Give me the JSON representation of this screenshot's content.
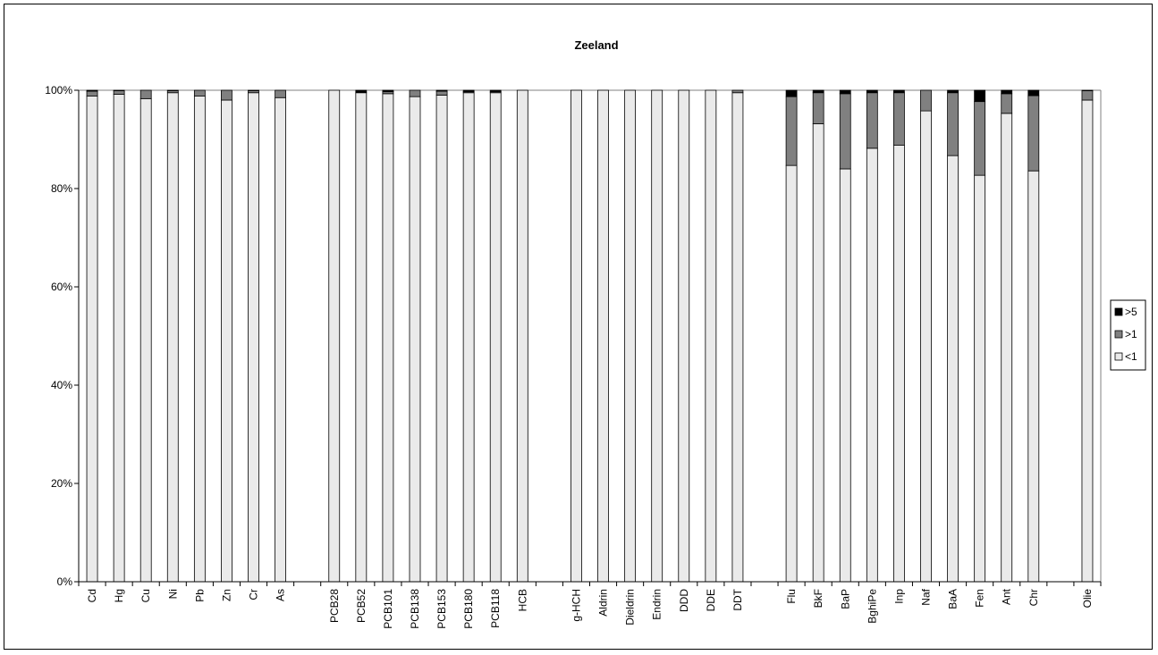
{
  "chart_data": {
    "type": "bar",
    "stacked": true,
    "percent_stacked": true,
    "title": "Zeeland",
    "xlabel": "",
    "ylabel": "",
    "ylim": [
      0,
      100
    ],
    "yticks": [
      "0%",
      "20%",
      "40%",
      "60%",
      "80%",
      "100%"
    ],
    "grid": false,
    "legend_position": "right",
    "categories": [
      "Cd",
      "Hg",
      "Cu",
      "Ni",
      "Pb",
      "Zn",
      "Cr",
      "As",
      "",
      "PCB28",
      "PCB52",
      "PCB101",
      "PCB138",
      "PCB153",
      "PCB180",
      "PCB118",
      "HCB",
      "",
      "g-HCH",
      "Aldrin",
      "Dieldrin",
      "Endrin",
      "DDD",
      "DDE",
      "DDT",
      "",
      "Flu",
      "BkF",
      "BaP",
      "BghiPe",
      "Inp",
      "Naf",
      "BaA",
      "Fen",
      "Ant",
      "Chr",
      "",
      "Olie"
    ],
    "series": [
      {
        "name": "<1",
        "color": "#eaeaea",
        "values": [
          98.8,
          99.2,
          98.3,
          99.5,
          98.8,
          98.0,
          99.5,
          98.5,
          null,
          100,
          99.5,
          99.3,
          98.7,
          99.0,
          99.5,
          99.5,
          100,
          null,
          100,
          100,
          100,
          100,
          100,
          100,
          99.5,
          null,
          84.7,
          93.2,
          84.0,
          88.2,
          88.8,
          95.8,
          86.7,
          82.7,
          95.3,
          83.6,
          null,
          98.0
        ]
      },
      {
        "name": ">1",
        "color": "#808080",
        "values": [
          1.0,
          0.7,
          1.7,
          0.4,
          1.2,
          2.0,
          0.4,
          1.5,
          null,
          0,
          0,
          0.4,
          1.3,
          0.8,
          0.2,
          0.2,
          0,
          null,
          0,
          0,
          0,
          0,
          0,
          0,
          0.5,
          null,
          14.0,
          6.3,
          15.3,
          11.3,
          10.7,
          4.2,
          12.8,
          15.0,
          4.0,
          15.3,
          null,
          1.9
        ]
      },
      {
        "name": ">5",
        "color": "#000000",
        "values": [
          0.2,
          0.1,
          0,
          0.1,
          0,
          0,
          0.1,
          0,
          null,
          0,
          0.5,
          0.3,
          0,
          0.2,
          0.3,
          0.3,
          0,
          null,
          0,
          0,
          0,
          0,
          0,
          0,
          0,
          null,
          1.3,
          0.5,
          0.7,
          0.5,
          0.5,
          0,
          0.5,
          2.3,
          0.7,
          1.1,
          null,
          0.1
        ]
      }
    ],
    "legend_order": [
      ">5",
      ">1",
      "<1"
    ]
  }
}
